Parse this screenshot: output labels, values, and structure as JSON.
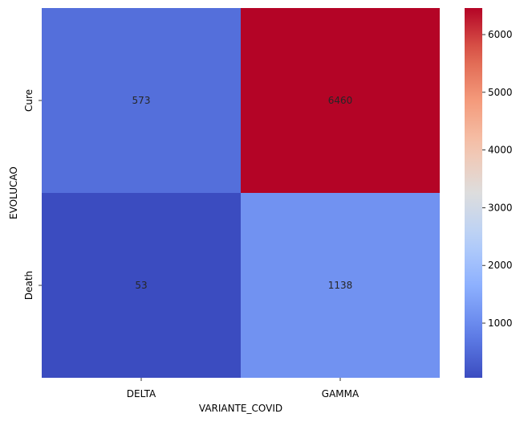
{
  "chart_data": {
    "type": "heatmap",
    "title": "",
    "xlabel": "VARIANTE_COVID",
    "ylabel": "EVOLUCAO",
    "x_categories": [
      "DELTA",
      "GAMMA"
    ],
    "y_categories": [
      "Cure",
      "Death"
    ],
    "values": [
      [
        573,
        6460
      ],
      [
        53,
        1138
      ]
    ],
    "colormap": "coolwarm",
    "colorbar": {
      "min": 53,
      "max": 6460,
      "ticks": [
        1000,
        2000,
        3000,
        4000,
        5000,
        6000
      ]
    },
    "annotations": true
  }
}
